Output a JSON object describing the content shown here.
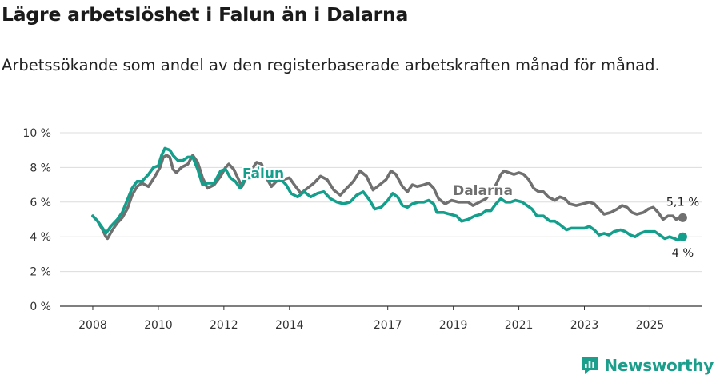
{
  "header": {
    "title": "Lägre arbetslöshet i Falun än i Dalarna",
    "subtitle": "Arbetssökande som andel av den registerbaserade arbetskraften månad för månad."
  },
  "brand": {
    "name": "Newsworthy",
    "color": "#1c9e8c"
  },
  "chart_data": {
    "type": "line",
    "title": "Lägre arbetslöshet i Falun än i Dalarna",
    "subtitle": "Arbetssökande som andel av den registerbaserade arbetskraften månad för månad.",
    "xlabel": "",
    "ylabel": "",
    "ylim": [
      0,
      10
    ],
    "xlim": [
      2007.0,
      2026.6
    ],
    "y_ticks": [
      "0 %",
      "2 %",
      "4 %",
      "6 %",
      "8 %",
      "10 %"
    ],
    "x_ticks": [
      "2008",
      "2010",
      "2012",
      "2014",
      "2017",
      "2019",
      "2021",
      "2023",
      "2025"
    ],
    "grid": true,
    "legend": "none",
    "series": [
      {
        "name": "Dalarna",
        "color": "#707070",
        "end_label": "5,1 %",
        "points": [
          [
            2008.0,
            5.2
          ],
          [
            2008.15,
            4.9
          ],
          [
            2008.3,
            4.4
          ],
          [
            2008.4,
            4.0
          ],
          [
            2008.45,
            3.9
          ],
          [
            2008.6,
            4.4
          ],
          [
            2008.75,
            4.8
          ],
          [
            2008.9,
            5.1
          ],
          [
            2009.05,
            5.6
          ],
          [
            2009.2,
            6.4
          ],
          [
            2009.35,
            6.9
          ],
          [
            2009.5,
            7.1
          ],
          [
            2009.7,
            6.9
          ],
          [
            2009.9,
            7.5
          ],
          [
            2010.05,
            8.0
          ],
          [
            2010.15,
            8.6
          ],
          [
            2010.25,
            8.7
          ],
          [
            2010.35,
            8.6
          ],
          [
            2010.45,
            7.9
          ],
          [
            2010.55,
            7.7
          ],
          [
            2010.7,
            8.0
          ],
          [
            2010.9,
            8.2
          ],
          [
            2011.05,
            8.7
          ],
          [
            2011.2,
            8.3
          ],
          [
            2011.35,
            7.4
          ],
          [
            2011.5,
            6.8
          ],
          [
            2011.7,
            7.0
          ],
          [
            2011.9,
            7.5
          ],
          [
            2012.05,
            8.0
          ],
          [
            2012.15,
            8.2
          ],
          [
            2012.3,
            7.9
          ],
          [
            2012.45,
            7.3
          ],
          [
            2012.55,
            6.9
          ],
          [
            2012.7,
            7.5
          ],
          [
            2012.85,
            7.9
          ],
          [
            2013.0,
            8.3
          ],
          [
            2013.15,
            8.2
          ],
          [
            2013.3,
            7.4
          ],
          [
            2013.45,
            6.9
          ],
          [
            2013.6,
            7.2
          ],
          [
            2013.8,
            7.3
          ],
          [
            2014.0,
            7.4
          ],
          [
            2014.15,
            7.0
          ],
          [
            2014.35,
            6.5
          ],
          [
            2014.55,
            6.8
          ],
          [
            2014.75,
            7.1
          ],
          [
            2014.95,
            7.5
          ],
          [
            2015.15,
            7.3
          ],
          [
            2015.35,
            6.7
          ],
          [
            2015.55,
            6.4
          ],
          [
            2015.75,
            6.8
          ],
          [
            2015.95,
            7.2
          ],
          [
            2016.15,
            7.8
          ],
          [
            2016.35,
            7.5
          ],
          [
            2016.55,
            6.7
          ],
          [
            2016.75,
            7.0
          ],
          [
            2016.95,
            7.3
          ],
          [
            2017.1,
            7.8
          ],
          [
            2017.25,
            7.6
          ],
          [
            2017.45,
            6.9
          ],
          [
            2017.6,
            6.6
          ],
          [
            2017.75,
            7.0
          ],
          [
            2017.9,
            6.9
          ],
          [
            2018.1,
            7.0
          ],
          [
            2018.25,
            7.1
          ],
          [
            2018.4,
            6.8
          ],
          [
            2018.55,
            6.2
          ],
          [
            2018.75,
            5.9
          ],
          [
            2018.95,
            6.1
          ],
          [
            2019.15,
            6.0
          ],
          [
            2019.3,
            6.0
          ],
          [
            2019.45,
            6.0
          ],
          [
            2019.6,
            5.8
          ],
          [
            2019.8,
            6.0
          ],
          [
            2020.0,
            6.2
          ],
          [
            2020.15,
            6.6
          ],
          [
            2020.3,
            7.0
          ],
          [
            2020.45,
            7.6
          ],
          [
            2020.55,
            7.8
          ],
          [
            2020.7,
            7.7
          ],
          [
            2020.85,
            7.6
          ],
          [
            2021.0,
            7.7
          ],
          [
            2021.15,
            7.6
          ],
          [
            2021.3,
            7.3
          ],
          [
            2021.45,
            6.8
          ],
          [
            2021.6,
            6.6
          ],
          [
            2021.75,
            6.6
          ],
          [
            2021.9,
            6.3
          ],
          [
            2022.1,
            6.1
          ],
          [
            2022.25,
            6.3
          ],
          [
            2022.4,
            6.2
          ],
          [
            2022.55,
            5.9
          ],
          [
            2022.75,
            5.8
          ],
          [
            2022.95,
            5.9
          ],
          [
            2023.15,
            6.0
          ],
          [
            2023.3,
            5.9
          ],
          [
            2023.45,
            5.6
          ],
          [
            2023.6,
            5.3
          ],
          [
            2023.8,
            5.4
          ],
          [
            2024.0,
            5.6
          ],
          [
            2024.15,
            5.8
          ],
          [
            2024.3,
            5.7
          ],
          [
            2024.45,
            5.4
          ],
          [
            2024.6,
            5.3
          ],
          [
            2024.8,
            5.4
          ],
          [
            2024.95,
            5.6
          ],
          [
            2025.1,
            5.7
          ],
          [
            2025.25,
            5.4
          ],
          [
            2025.4,
            5.0
          ],
          [
            2025.55,
            5.2
          ],
          [
            2025.7,
            5.2
          ],
          [
            2025.8,
            5.0
          ],
          [
            2025.9,
            5.1
          ],
          [
            2026.0,
            5.1
          ]
        ]
      },
      {
        "name": "Falun",
        "color": "#149e8c",
        "end_label": "4 %",
        "points": [
          [
            2008.0,
            5.2
          ],
          [
            2008.15,
            4.9
          ],
          [
            2008.3,
            4.5
          ],
          [
            2008.4,
            4.2
          ],
          [
            2008.55,
            4.6
          ],
          [
            2008.75,
            5.0
          ],
          [
            2008.9,
            5.4
          ],
          [
            2009.05,
            6.1
          ],
          [
            2009.2,
            6.8
          ],
          [
            2009.35,
            7.2
          ],
          [
            2009.5,
            7.2
          ],
          [
            2009.7,
            7.6
          ],
          [
            2009.85,
            8.0
          ],
          [
            2010.0,
            8.1
          ],
          [
            2010.1,
            8.7
          ],
          [
            2010.2,
            9.1
          ],
          [
            2010.35,
            9.0
          ],
          [
            2010.45,
            8.7
          ],
          [
            2010.6,
            8.4
          ],
          [
            2010.75,
            8.4
          ],
          [
            2010.9,
            8.6
          ],
          [
            2011.05,
            8.6
          ],
          [
            2011.2,
            7.9
          ],
          [
            2011.35,
            7.0
          ],
          [
            2011.5,
            7.1
          ],
          [
            2011.7,
            7.1
          ],
          [
            2011.9,
            7.8
          ],
          [
            2012.05,
            7.9
          ],
          [
            2012.2,
            7.4
          ],
          [
            2012.35,
            7.2
          ],
          [
            2012.5,
            6.8
          ],
          [
            2012.65,
            7.4
          ],
          [
            2012.8,
            7.4
          ],
          [
            2012.95,
            7.6
          ],
          [
            2013.1,
            8.0
          ],
          [
            2013.25,
            7.6
          ],
          [
            2013.4,
            7.2
          ],
          [
            2013.55,
            7.3
          ],
          [
            2013.75,
            7.3
          ],
          [
            2013.9,
            7.0
          ],
          [
            2014.05,
            6.5
          ],
          [
            2014.25,
            6.3
          ],
          [
            2014.45,
            6.6
          ],
          [
            2014.65,
            6.3
          ],
          [
            2014.85,
            6.5
          ],
          [
            2015.05,
            6.6
          ],
          [
            2015.25,
            6.2
          ],
          [
            2015.45,
            6.0
          ],
          [
            2015.65,
            5.9
          ],
          [
            2015.85,
            6.0
          ],
          [
            2016.05,
            6.4
          ],
          [
            2016.25,
            6.6
          ],
          [
            2016.45,
            6.1
          ],
          [
            2016.6,
            5.6
          ],
          [
            2016.8,
            5.7
          ],
          [
            2017.0,
            6.1
          ],
          [
            2017.15,
            6.5
          ],
          [
            2017.3,
            6.3
          ],
          [
            2017.45,
            5.8
          ],
          [
            2017.6,
            5.7
          ],
          [
            2017.75,
            5.9
          ],
          [
            2017.95,
            6.0
          ],
          [
            2018.1,
            6.0
          ],
          [
            2018.25,
            6.1
          ],
          [
            2018.4,
            5.9
          ],
          [
            2018.5,
            5.4
          ],
          [
            2018.7,
            5.4
          ],
          [
            2018.9,
            5.3
          ],
          [
            2019.1,
            5.2
          ],
          [
            2019.25,
            4.9
          ],
          [
            2019.45,
            5.0
          ],
          [
            2019.65,
            5.2
          ],
          [
            2019.85,
            5.3
          ],
          [
            2020.0,
            5.5
          ],
          [
            2020.15,
            5.5
          ],
          [
            2020.3,
            5.9
          ],
          [
            2020.45,
            6.2
          ],
          [
            2020.6,
            6.0
          ],
          [
            2020.75,
            6.0
          ],
          [
            2020.9,
            6.1
          ],
          [
            2021.1,
            6.0
          ],
          [
            2021.25,
            5.8
          ],
          [
            2021.4,
            5.6
          ],
          [
            2021.55,
            5.2
          ],
          [
            2021.75,
            5.2
          ],
          [
            2021.95,
            4.9
          ],
          [
            2022.1,
            4.9
          ],
          [
            2022.25,
            4.7
          ],
          [
            2022.45,
            4.4
          ],
          [
            2022.6,
            4.5
          ],
          [
            2022.8,
            4.5
          ],
          [
            2023.0,
            4.5
          ],
          [
            2023.15,
            4.6
          ],
          [
            2023.3,
            4.4
          ],
          [
            2023.45,
            4.1
          ],
          [
            2023.6,
            4.2
          ],
          [
            2023.75,
            4.1
          ],
          [
            2023.9,
            4.3
          ],
          [
            2024.1,
            4.4
          ],
          [
            2024.25,
            4.3
          ],
          [
            2024.4,
            4.1
          ],
          [
            2024.55,
            4.0
          ],
          [
            2024.7,
            4.2
          ],
          [
            2024.85,
            4.3
          ],
          [
            2025.0,
            4.3
          ],
          [
            2025.15,
            4.3
          ],
          [
            2025.3,
            4.1
          ],
          [
            2025.45,
            3.9
          ],
          [
            2025.6,
            4.0
          ],
          [
            2025.75,
            3.9
          ],
          [
            2025.85,
            3.8
          ],
          [
            2026.0,
            4.0
          ]
        ]
      }
    ],
    "annotations": [
      {
        "series": "Falun",
        "text": "Falun",
        "at": [
          2013.2,
          7.4
        ]
      },
      {
        "series": "Dalarna",
        "text": "Dalarna",
        "at": [
          2019.9,
          6.4
        ]
      }
    ]
  }
}
